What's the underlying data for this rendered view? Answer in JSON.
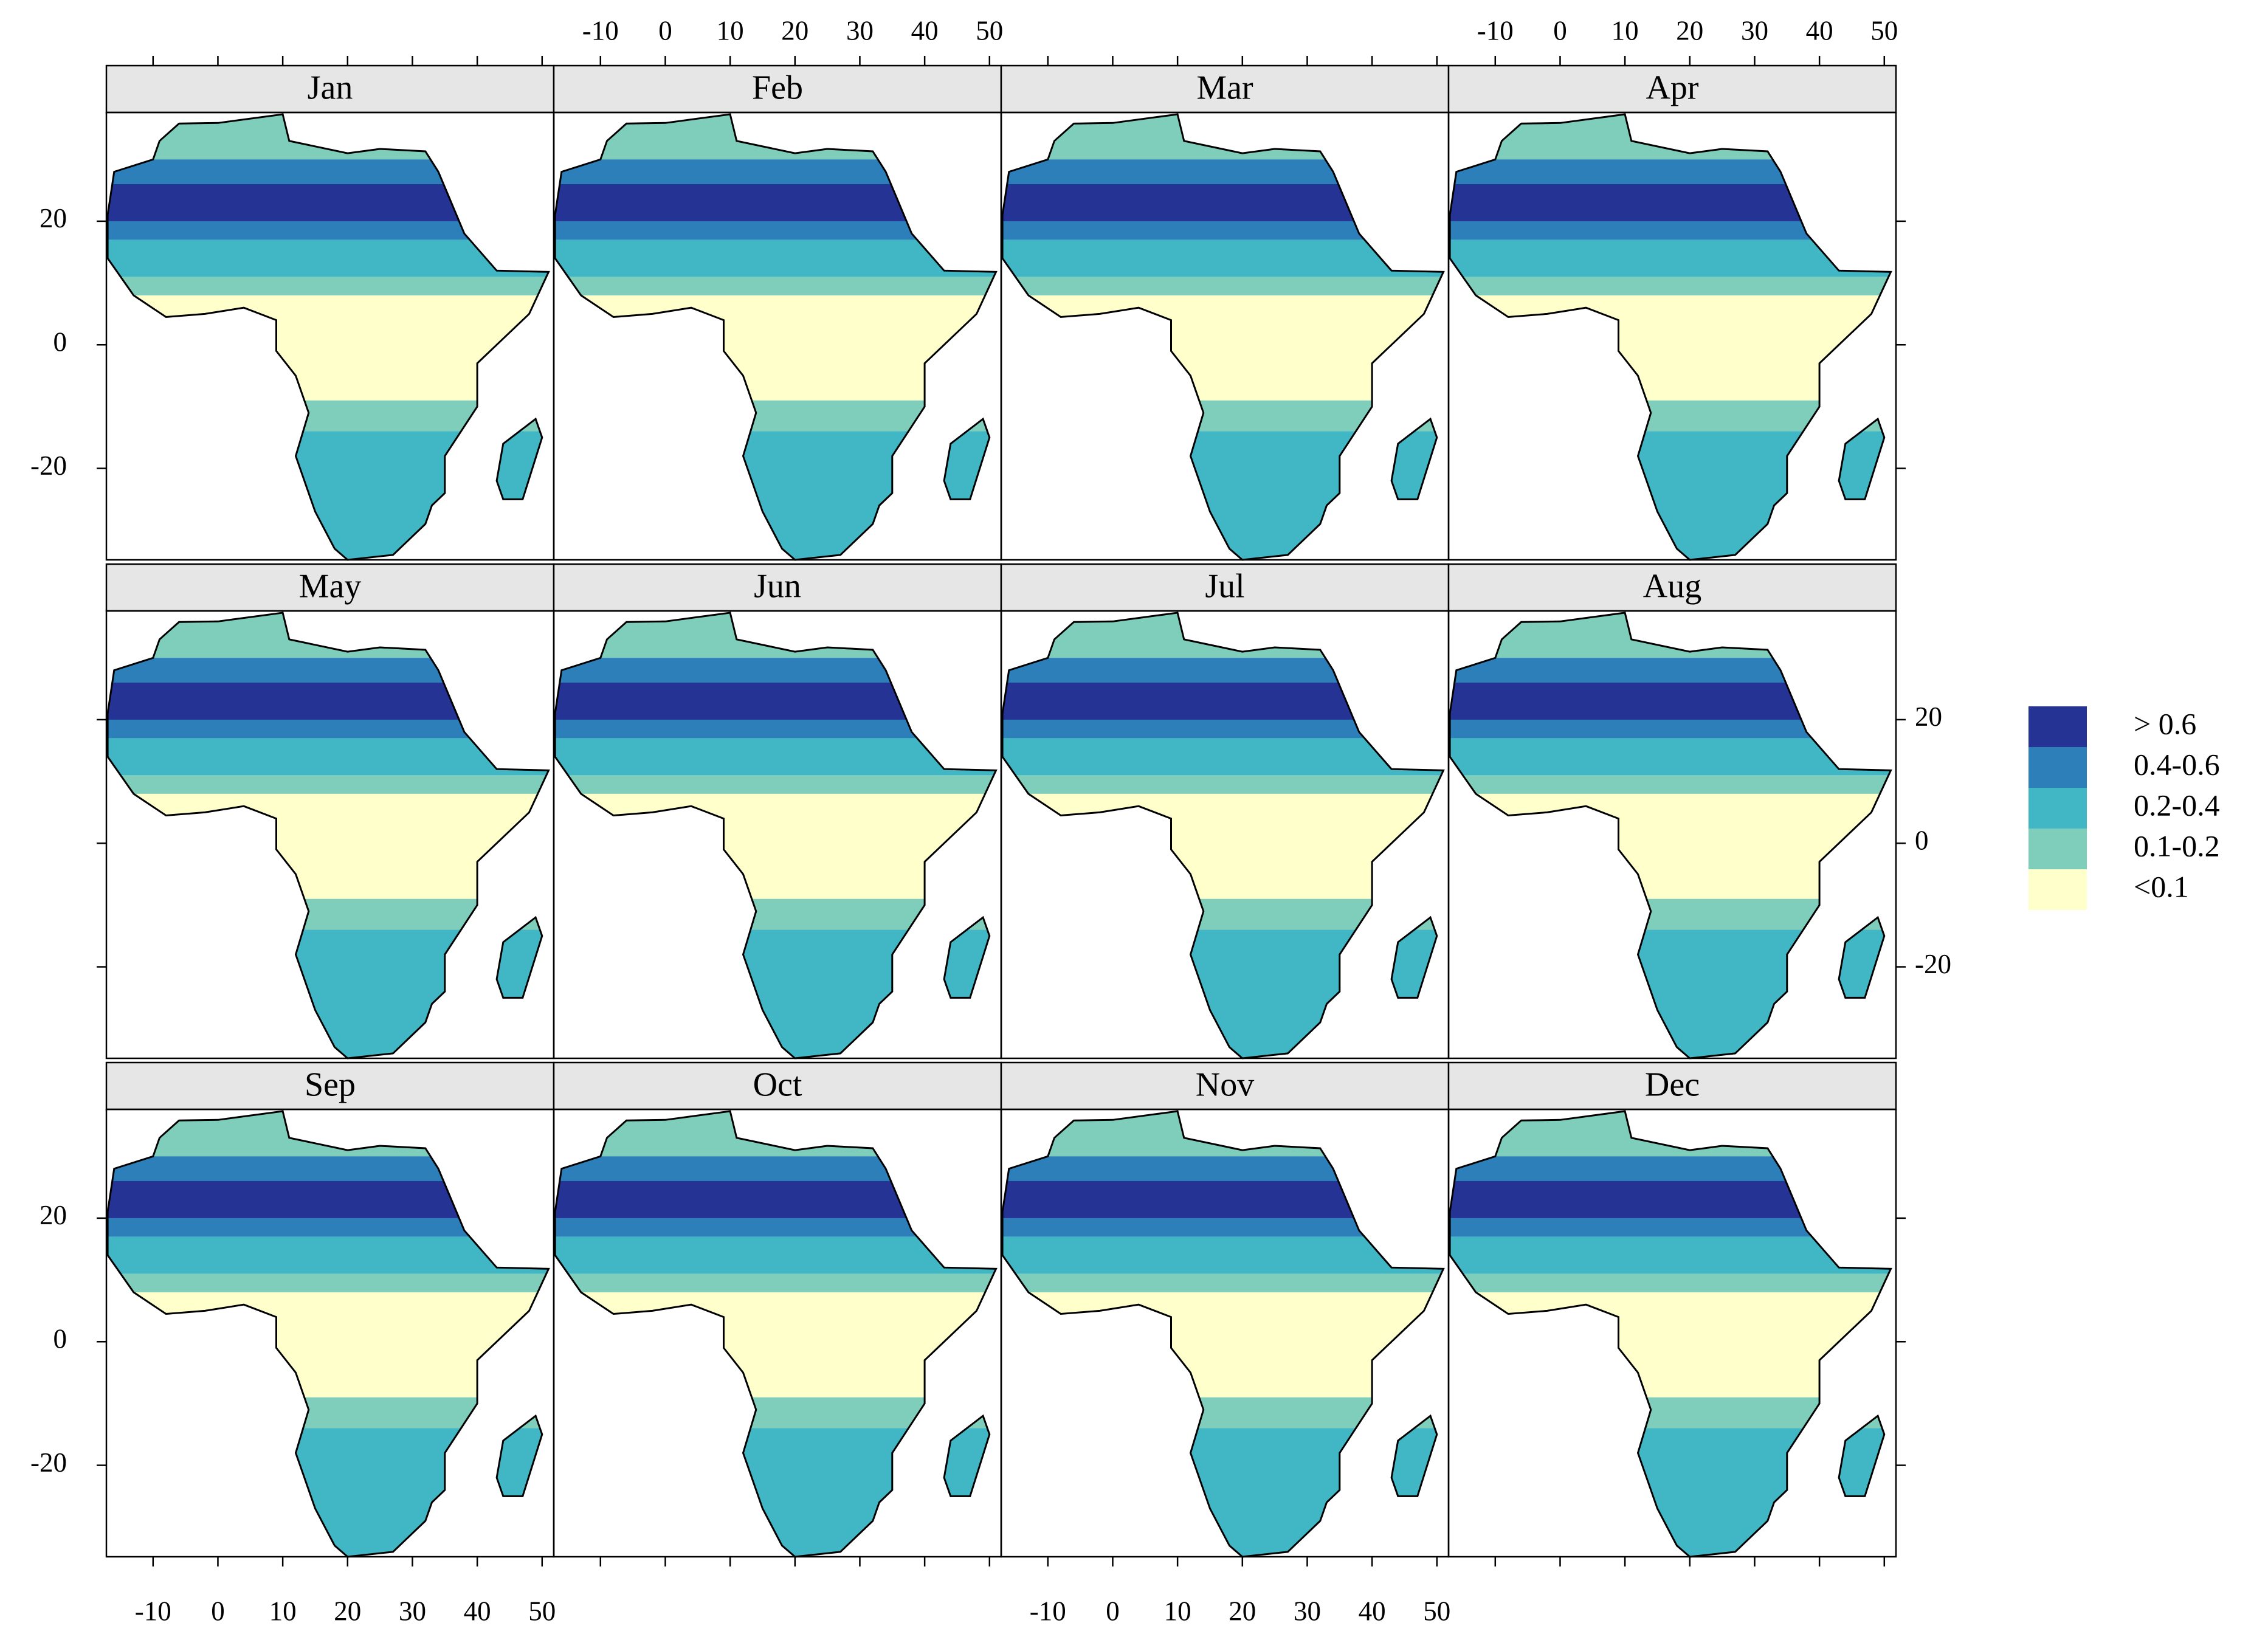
{
  "map": {
    "panels": [
      "Jan",
      "Feb",
      "Mar",
      "Apr",
      "May",
      "Jun",
      "Jul",
      "Aug",
      "Sep",
      "Oct",
      "Nov",
      "Dec"
    ],
    "xlim": [
      -17.2,
      51.8
    ],
    "ylim": [
      -34.8,
      37.6
    ],
    "xticks": [
      -10,
      0,
      10,
      20,
      30,
      40,
      50
    ],
    "yticks": [
      20,
      0,
      -20
    ],
    "legend": [
      {
        "label": "> 0.6",
        "color": "#253494"
      },
      {
        "label": "0.4-0.6",
        "color": "#2c7fb8"
      },
      {
        "label": "0.2-0.4",
        "color": "#41b6c4"
      },
      {
        "label": "0.1-0.2",
        "color": "#7fcdbb"
      },
      {
        "label": "<0.1",
        "color": "#ffffcc"
      }
    ]
  }
}
